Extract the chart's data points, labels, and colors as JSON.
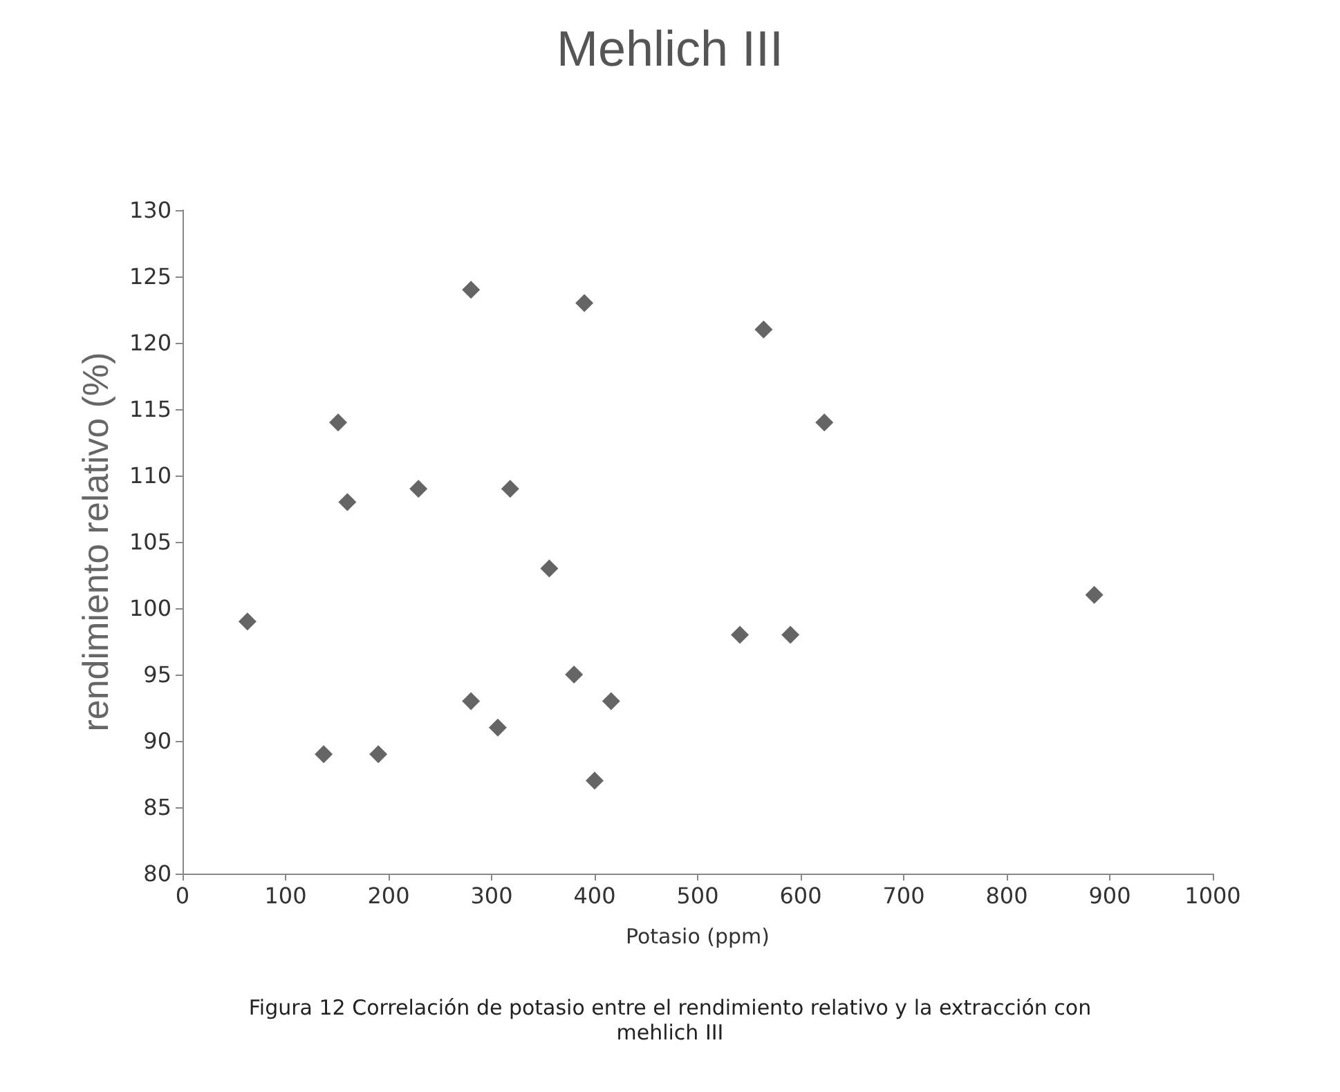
{
  "chart_data": {
    "type": "scatter",
    "title": "Mehlich III",
    "xlabel": "Potasio (ppm)",
    "ylabel": "rendimiento relativo (%)",
    "annotations": [
      "Figura 12  Correlación de potasio entre el rendimiento relativo y la extracción con mehlich III"
    ],
    "x": [
      63,
      137,
      151,
      160,
      190,
      229,
      280,
      280,
      306,
      318,
      356,
      390,
      380,
      400,
      416,
      564,
      623,
      541,
      590,
      885
    ],
    "values": [
      99,
      89,
      114,
      108,
      89,
      109,
      124,
      93,
      91,
      109,
      103,
      123,
      95,
      87,
      93,
      121,
      114,
      98,
      98,
      101
    ],
    "color": "#3f3f3f",
    "marker": "diamond",
    "xlim": [
      0,
      1000
    ],
    "xticks": [
      0,
      100,
      200,
      300,
      400,
      500,
      600,
      700,
      800,
      900,
      1000
    ],
    "ylim": [
      80,
      130
    ],
    "yticks": [
      80,
      85,
      90,
      95,
      100,
      105,
      110,
      115,
      120,
      125,
      130
    ],
    "grid": false
  }
}
